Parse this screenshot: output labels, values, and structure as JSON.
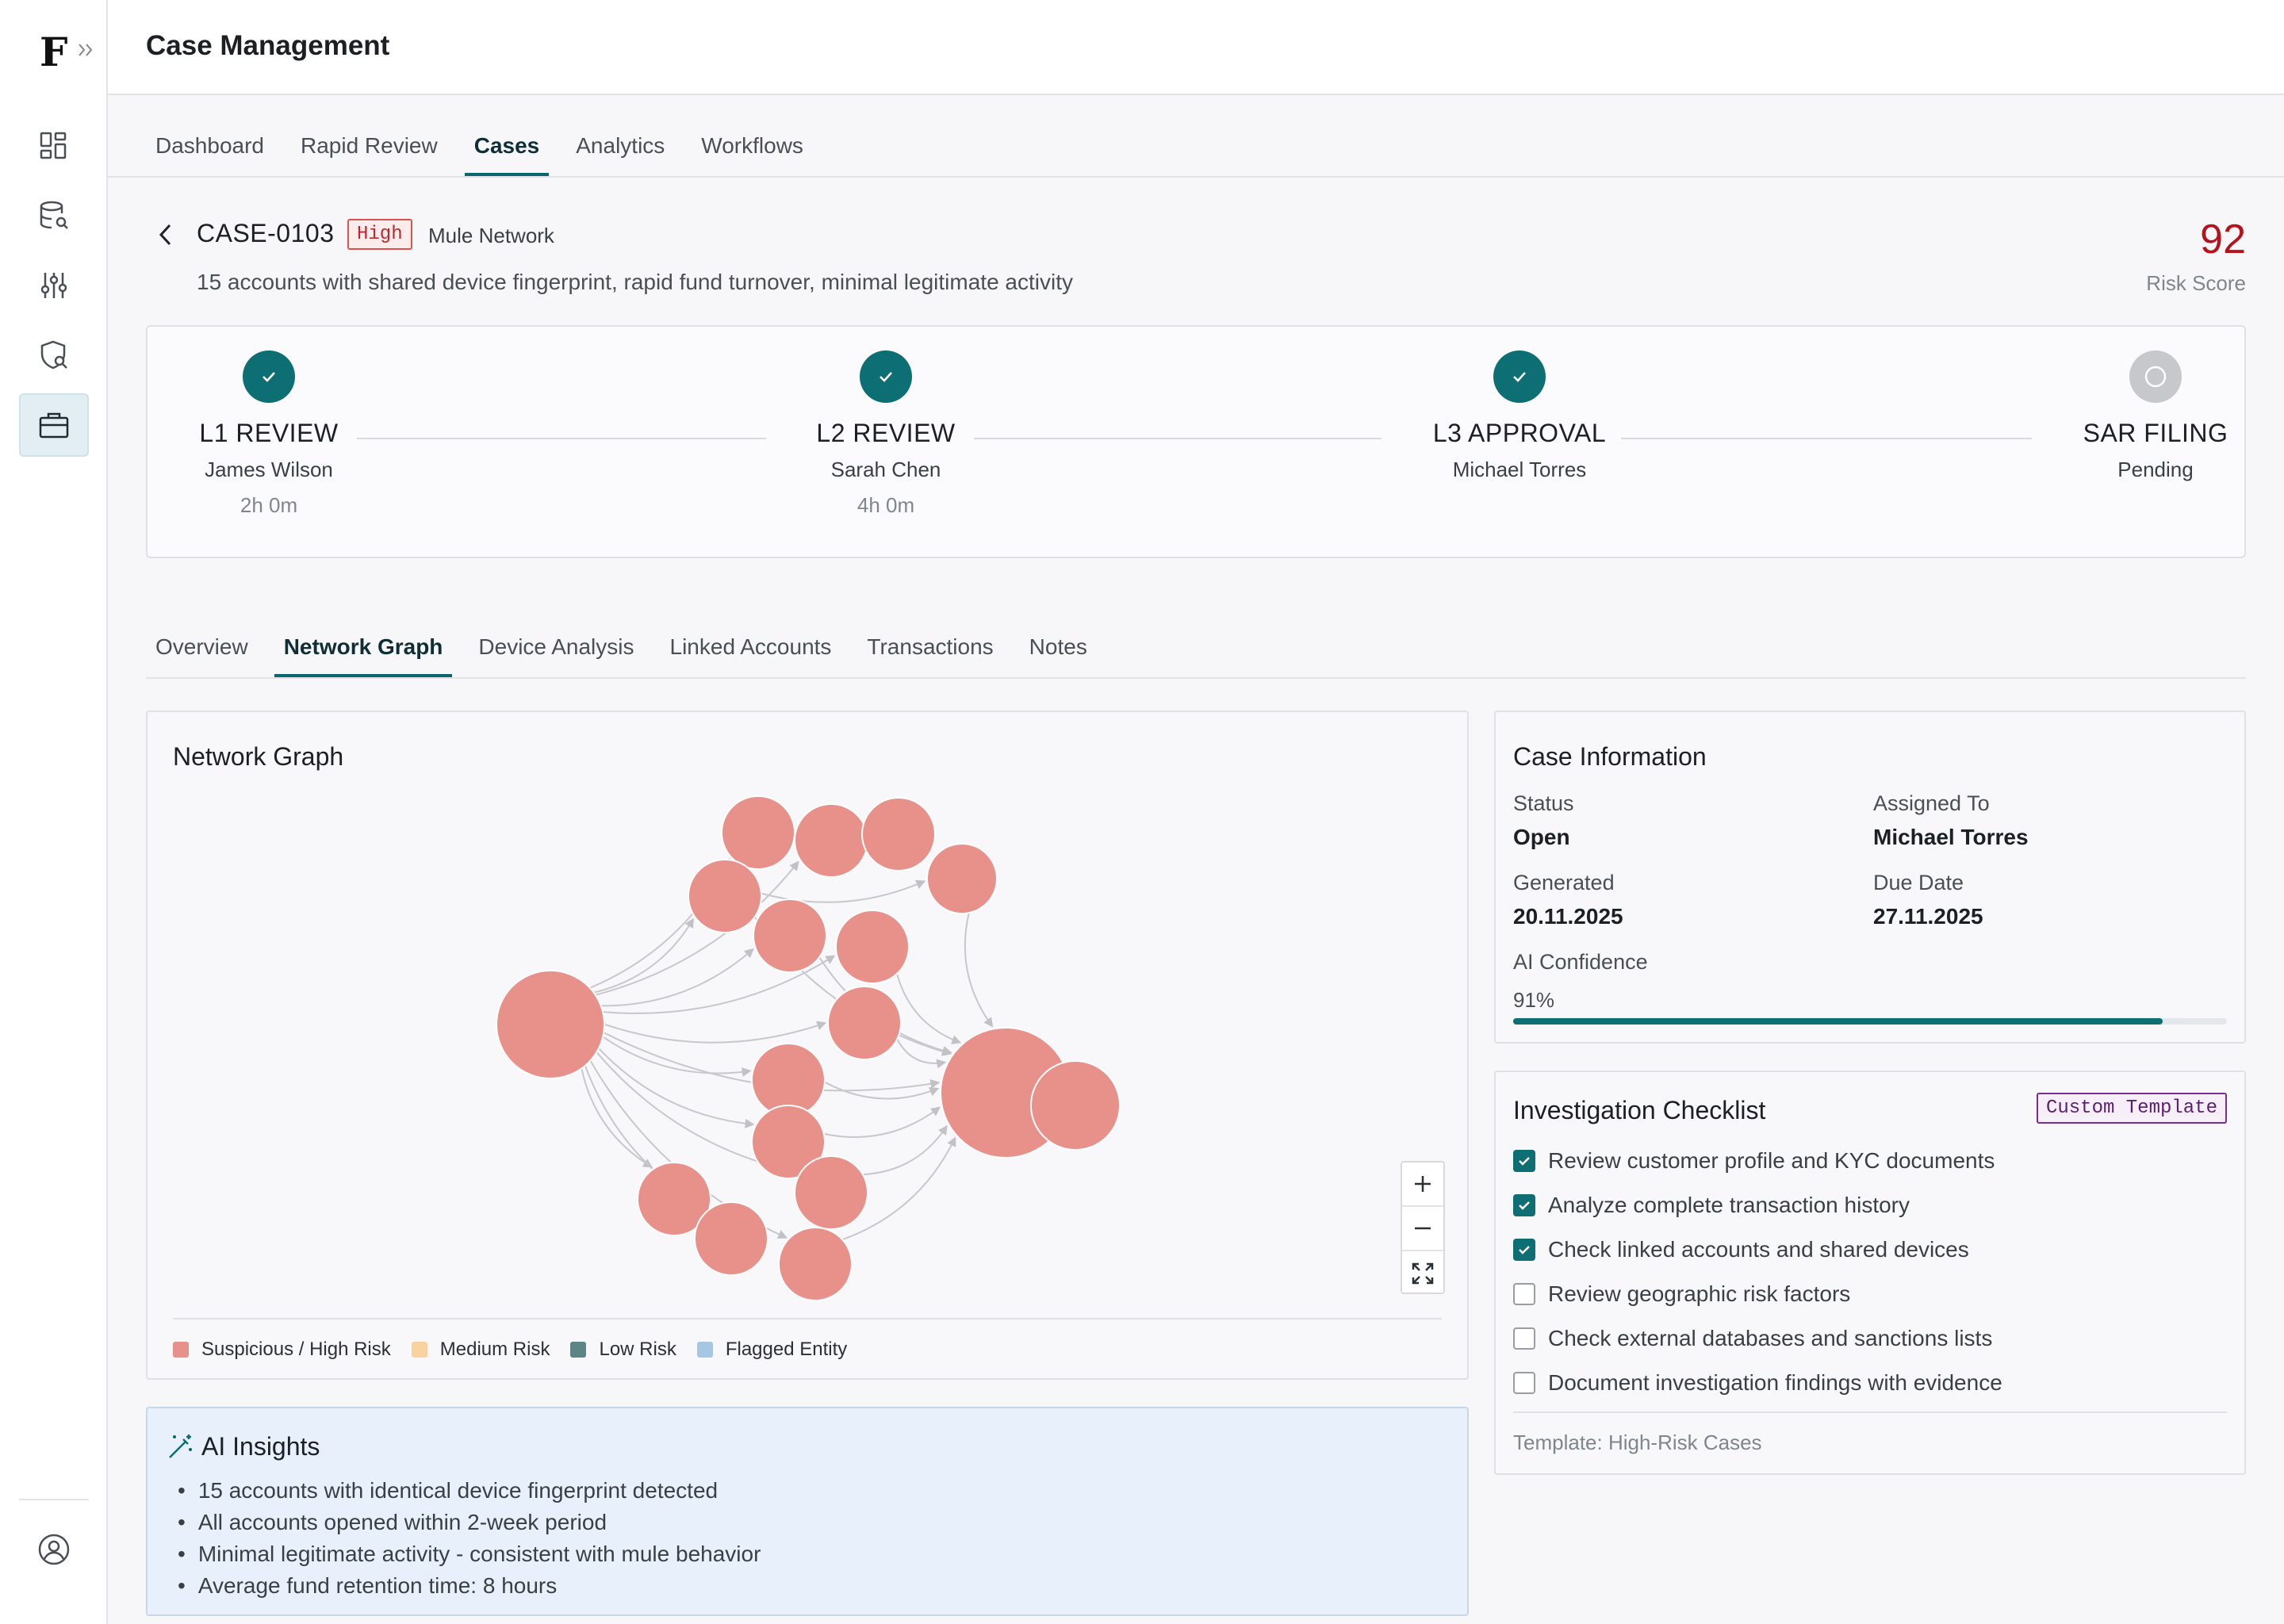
{
  "app": {
    "logo": "F",
    "title": "Case Management"
  },
  "top_tabs": [
    {
      "label": "Dashboard",
      "active": false
    },
    {
      "label": "Rapid Review",
      "active": false
    },
    {
      "label": "Cases",
      "active": true
    },
    {
      "label": "Analytics",
      "active": false
    },
    {
      "label": "Workflows",
      "active": false
    }
  ],
  "sidebar_icons": [
    "dashboard-grid-icon",
    "database-search-icon",
    "sliders-icon",
    "shield-search-icon",
    "briefcase-icon",
    "user-circle-icon"
  ],
  "case": {
    "id": "CASE-0103",
    "priority": "High",
    "type": "Mule Network",
    "description": "15 accounts with shared device fingerprint, rapid fund turnover, minimal legitimate activity",
    "risk_score": "92",
    "risk_score_label": "Risk Score"
  },
  "workflow": [
    {
      "name": "L1 REVIEW",
      "person": "James Wilson",
      "time": "2h 0m",
      "status": "done"
    },
    {
      "name": "L2 REVIEW",
      "person": "Sarah Chen",
      "time": "4h 0m",
      "status": "done"
    },
    {
      "name": "L3 APPROVAL",
      "person": "Michael Torres",
      "time": "",
      "status": "done"
    },
    {
      "name": "SAR FILING",
      "person": "Pending",
      "time": "",
      "status": "pending"
    }
  ],
  "section_tabs": [
    {
      "label": "Overview",
      "active": false
    },
    {
      "label": "Network Graph",
      "active": true
    },
    {
      "label": "Device Analysis",
      "active": false
    },
    {
      "label": "Linked Accounts",
      "active": false
    },
    {
      "label": "Transactions",
      "active": false
    },
    {
      "label": "Notes",
      "active": false
    }
  ],
  "network_graph": {
    "title": "Network Graph",
    "node_color": "#e8908a",
    "legend": [
      {
        "label": "Suspicious / High Risk",
        "color": "#e8908a"
      },
      {
        "label": "Medium Risk",
        "color": "#f8d3a0"
      },
      {
        "label": "Low Risk",
        "color": "#5e8585"
      },
      {
        "label": "Flagged Entity",
        "color": "#a7c6e4"
      }
    ]
  },
  "ai_insights": {
    "title": "AI Insights",
    "items": [
      "15 accounts with identical device fingerprint detected",
      "All accounts opened within 2-week period",
      "Minimal legitimate activity - consistent with mule behavior",
      "Average fund retention time: 8 hours"
    ]
  },
  "case_info": {
    "title": "Case Information",
    "status_label": "Status",
    "status": "Open",
    "assigned_label": "Assigned To",
    "assigned": "Michael Torres",
    "generated_label": "Generated",
    "generated": "20.11.2025",
    "due_label": "Due Date",
    "due": "27.11.2025",
    "confidence_label": "AI Confidence",
    "confidence": "91%",
    "confidence_value": 0.91,
    "accent": "#0d6e73"
  },
  "checklist": {
    "title": "Investigation Checklist",
    "badge": "Custom Template",
    "items": [
      {
        "label": "Review customer profile and KYC documents",
        "checked": true
      },
      {
        "label": "Analyze complete transaction history",
        "checked": true
      },
      {
        "label": "Check linked accounts and shared devices",
        "checked": true
      },
      {
        "label": "Review geographic risk factors",
        "checked": false
      },
      {
        "label": "Check external databases and sanctions lists",
        "checked": false
      },
      {
        "label": "Document investigation findings with evidence",
        "checked": false
      }
    ],
    "template_note": "Template: High-Risk Cases"
  }
}
